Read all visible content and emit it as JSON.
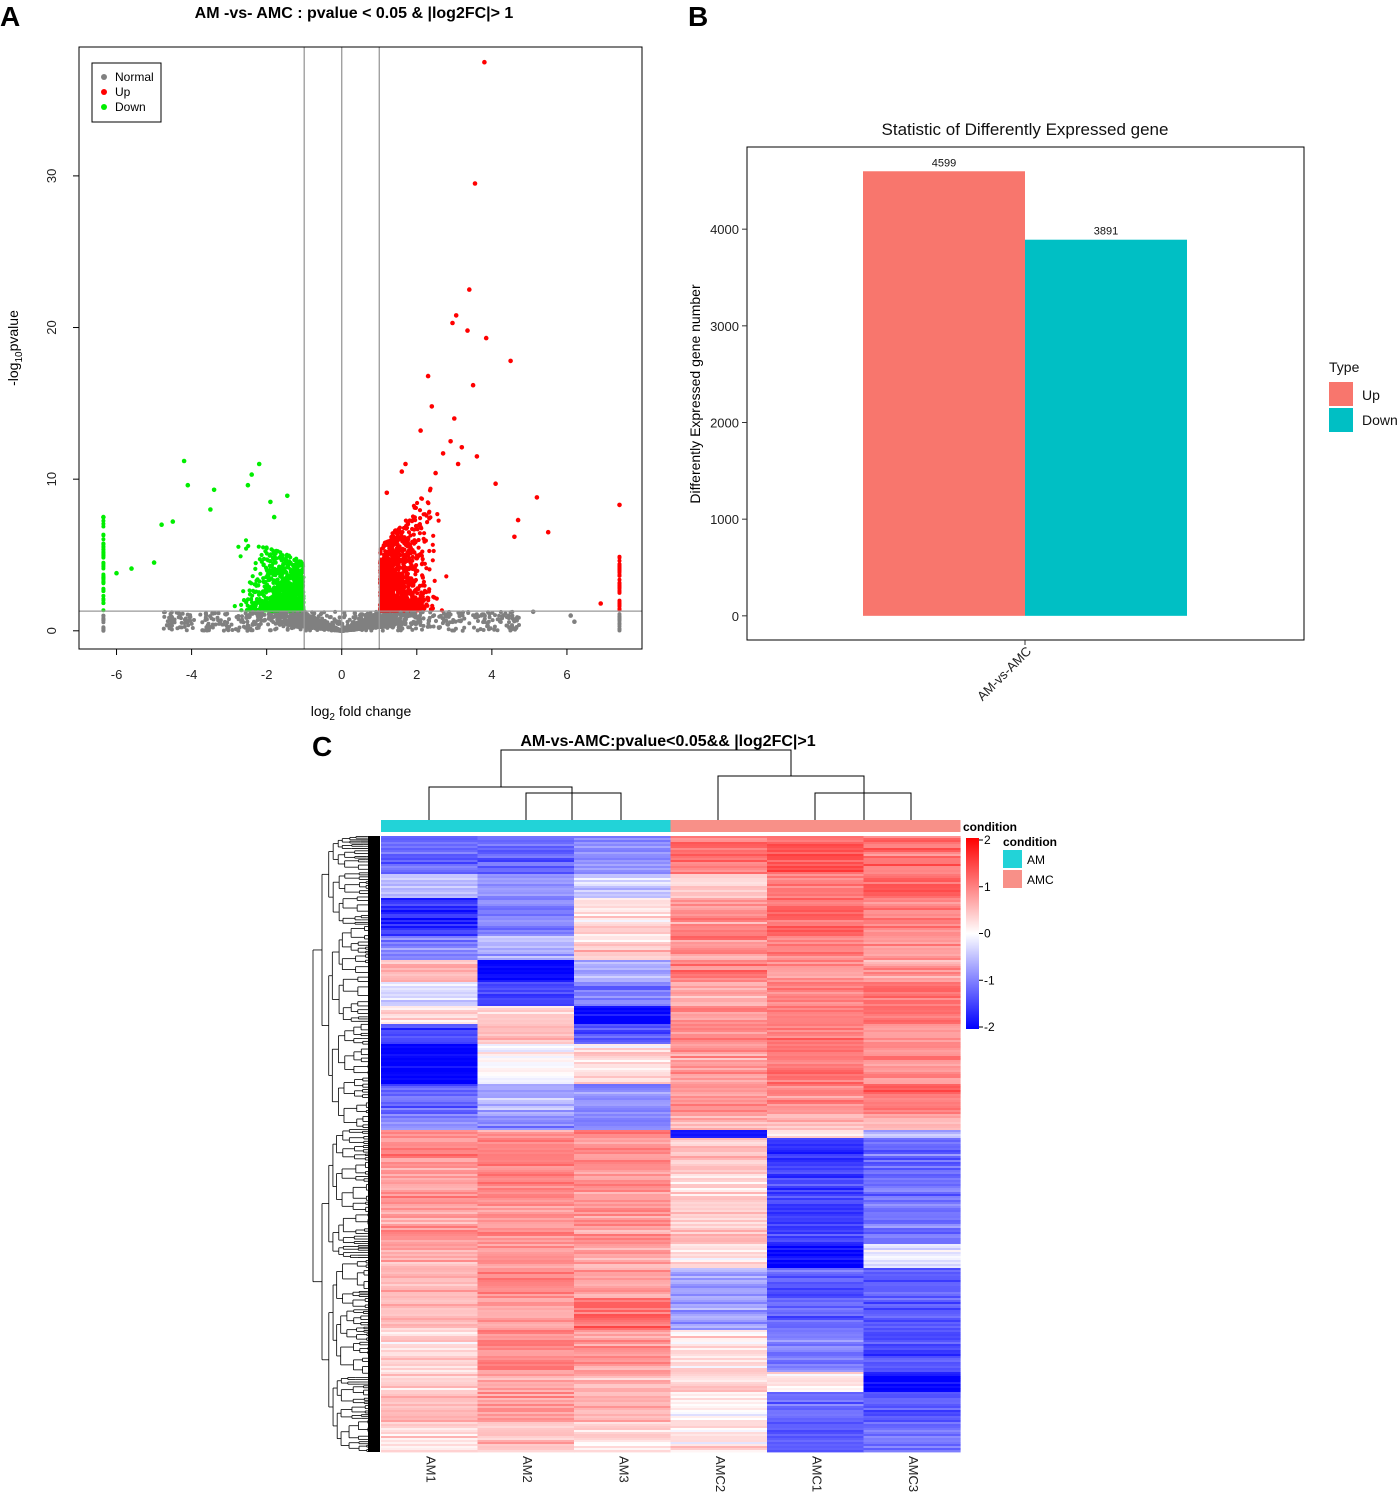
{
  "panels": {
    "a": "A",
    "b": "B",
    "c": "C"
  },
  "colors": {
    "up": "#ff0000",
    "down": "#00ee00",
    "normal": "#808080",
    "bar_up": "#f8766d",
    "bar_down": "#00bfc4",
    "cond_am": "#22d3d8",
    "cond_amc": "#f89088",
    "heat_low": "#0000ff",
    "heat_mid": "#ffffff",
    "heat_high": "#ff0000"
  },
  "chart_data": [
    {
      "type": "scatter",
      "title": "AM -vs- AMC : pvalue < 0.05 & |log2FC|> 1",
      "xlabel_base": "log",
      "xlabel_sub": "2",
      "xlabel_rest": " fold change",
      "ylabel_base": "-log",
      "ylabel_sub": "10",
      "ylabel_rest": "pvalue",
      "xlim": [
        -7,
        8
      ],
      "ylim": [
        -1.2,
        38.5
      ],
      "xticks": [
        -6,
        -4,
        -2,
        0,
        2,
        4,
        6
      ],
      "yticks": [
        0,
        10,
        20,
        30
      ],
      "vlines": [
        -1,
        0,
        1
      ],
      "hline": 1.3,
      "legend": [
        "Normal",
        "Up",
        "Down"
      ],
      "series": [
        {
          "name": "Up",
          "points": [
            [
              3.8,
              37.5
            ],
            [
              3.55,
              29.5
            ],
            [
              3.4,
              22.5
            ],
            [
              3.05,
              20.8
            ],
            [
              2.95,
              20.3
            ],
            [
              3.35,
              19.8
            ],
            [
              3.85,
              19.3
            ],
            [
              4.5,
              17.8
            ],
            [
              2.3,
              16.8
            ],
            [
              3.5,
              16.2
            ],
            [
              2.4,
              14.8
            ],
            [
              3.0,
              14.0
            ],
            [
              2.1,
              13.2
            ],
            [
              2.9,
              12.5
            ],
            [
              3.2,
              12.1
            ],
            [
              2.7,
              11.7
            ],
            [
              3.6,
              11.5
            ],
            [
              1.7,
              11.0
            ],
            [
              1.6,
              10.5
            ],
            [
              5.2,
              8.8
            ],
            [
              5.5,
              6.5
            ],
            [
              4.6,
              6.2
            ],
            [
              6.9,
              1.8
            ],
            [
              7.4,
              8.3
            ],
            [
              2.5,
              10.4
            ],
            [
              3.1,
              11.0
            ],
            [
              1.2,
              9.1
            ],
            [
              4.1,
              9.7
            ],
            [
              4.7,
              7.3
            ]
          ]
        },
        {
          "name": "Down",
          "points": [
            [
              -4.2,
              11.2
            ],
            [
              -2.2,
              11.0
            ],
            [
              -2.4,
              10.3
            ],
            [
              -2.5,
              9.6
            ],
            [
              -4.1,
              9.6
            ],
            [
              -3.4,
              9.3
            ],
            [
              -1.45,
              8.9
            ],
            [
              -1.9,
              8.5
            ],
            [
              -4.5,
              7.2
            ],
            [
              -1.8,
              7.5
            ],
            [
              -6.35,
              7.5
            ],
            [
              -5.0,
              4.5
            ],
            [
              -5.6,
              4.1
            ],
            [
              -6.0,
              3.8
            ],
            [
              -4.8,
              7.0
            ],
            [
              -3.5,
              8.0
            ]
          ]
        },
        {
          "name": "Normal",
          "points": [
            [
              5.1,
              1.25
            ],
            [
              6.1,
              1.0
            ],
            [
              6.2,
              0.6
            ],
            [
              4.3,
              1.0
            ]
          ]
        }
      ]
    },
    {
      "type": "bar",
      "title": "Statistic of Differently Expressed gene",
      "categories": [
        "AM-vs-AMC"
      ],
      "series": [
        {
          "name": "Up",
          "values": [
            4599
          ]
        },
        {
          "name": "Down",
          "values": [
            3891
          ]
        }
      ],
      "data_labels": [
        "4599",
        "3891"
      ],
      "ylabel": "Differently Expressed gene number",
      "yticks": [
        0,
        1000,
        2000,
        3000,
        4000
      ],
      "ylim": [
        -250,
        4850
      ],
      "legend_title": "Type",
      "legend": [
        "Up",
        "Down"
      ]
    },
    {
      "type": "heatmap",
      "title": "AM-vs-AMC:pvalue<0.05&& |log2FC|>1",
      "columns": [
        "AM1",
        "AM2",
        "AM3",
        "AMC2",
        "AMC1",
        "AMC3"
      ],
      "column_conditions": [
        "AM",
        "AM",
        "AM",
        "AMC",
        "AMC",
        "AMC"
      ],
      "color_range": [
        -2,
        2
      ],
      "colorbar_title": "condition",
      "colorbar_ticks": [
        "2",
        "1",
        "0",
        "-1",
        "-2"
      ],
      "condition_title": "condition",
      "condition_legend": [
        "AM",
        "AMC"
      ],
      "blocks": [
        {
          "from": 0.0,
          "to": 0.06,
          "values": [
            -1.2,
            -1.2,
            -0.9,
            1.1,
            1.3,
            1.1
          ]
        },
        {
          "from": 0.06,
          "to": 0.1,
          "values": [
            -0.5,
            -0.8,
            -0.4,
            0.3,
            1.0,
            1.2
          ]
        },
        {
          "from": 0.1,
          "to": 0.16,
          "values": [
            -1.6,
            -1.0,
            0.3,
            0.9,
            1.2,
            1.0
          ]
        },
        {
          "from": 0.16,
          "to": 0.2,
          "values": [
            -1.0,
            -0.6,
            0.4,
            0.8,
            1.0,
            0.8
          ]
        },
        {
          "from": 0.2,
          "to": 0.235,
          "values": [
            0.5,
            -2.0,
            -0.6,
            1.0,
            0.9,
            0.8
          ]
        },
        {
          "from": 0.235,
          "to": 0.275,
          "values": [
            -0.3,
            -1.4,
            -1.1,
            0.7,
            1.0,
            1.1
          ]
        },
        {
          "from": 0.275,
          "to": 0.305,
          "values": [
            0.3,
            0.4,
            -2.0,
            0.9,
            1.1,
            1.0
          ]
        },
        {
          "from": 0.305,
          "to": 0.335,
          "values": [
            -1.4,
            0.5,
            -1.3,
            0.9,
            1.0,
            0.8
          ]
        },
        {
          "from": 0.335,
          "to": 0.4,
          "values": [
            -2.0,
            0.0,
            0.2,
            0.8,
            1.1,
            0.9
          ]
        },
        {
          "from": 0.4,
          "to": 0.45,
          "values": [
            -1.3,
            -0.6,
            -0.9,
            0.9,
            1.0,
            1.1
          ]
        },
        {
          "from": 0.45,
          "to": 0.475,
          "values": [
            -0.8,
            -0.9,
            -1.0,
            0.6,
            0.5,
            0.4
          ]
        },
        {
          "from": 0.475,
          "to": 0.49,
          "values": [
            0.9,
            0.8,
            0.9,
            -1.9,
            0.2,
            -0.6
          ]
        },
        {
          "from": 0.49,
          "to": 0.53,
          "values": [
            0.9,
            0.9,
            0.9,
            0.5,
            -1.6,
            -1.2
          ]
        },
        {
          "from": 0.53,
          "to": 0.66,
          "values": [
            0.8,
            0.9,
            0.8,
            0.4,
            -1.5,
            -1.1
          ]
        },
        {
          "from": 0.66,
          "to": 0.7,
          "values": [
            0.7,
            0.8,
            0.7,
            0.3,
            -1.9,
            -0.1
          ]
        },
        {
          "from": 0.7,
          "to": 0.75,
          "values": [
            0.6,
            0.9,
            0.7,
            -0.7,
            -1.3,
            -1.2
          ]
        },
        {
          "from": 0.75,
          "to": 0.8,
          "values": [
            0.5,
            0.7,
            1.2,
            -0.8,
            -1.2,
            -1.3
          ]
        },
        {
          "from": 0.8,
          "to": 0.87,
          "values": [
            0.3,
            1.0,
            0.8,
            0.2,
            -1.0,
            -1.4
          ]
        },
        {
          "from": 0.87,
          "to": 0.9,
          "values": [
            0.4,
            0.7,
            0.6,
            0.4,
            0.1,
            -1.9
          ]
        },
        {
          "from": 0.9,
          "to": 0.95,
          "values": [
            0.6,
            0.8,
            0.6,
            0.1,
            -1.2,
            -1.2
          ]
        },
        {
          "from": 0.95,
          "to": 1.0,
          "values": [
            0.3,
            0.5,
            0.3,
            0.2,
            -1.3,
            -1.1
          ]
        }
      ]
    }
  ]
}
